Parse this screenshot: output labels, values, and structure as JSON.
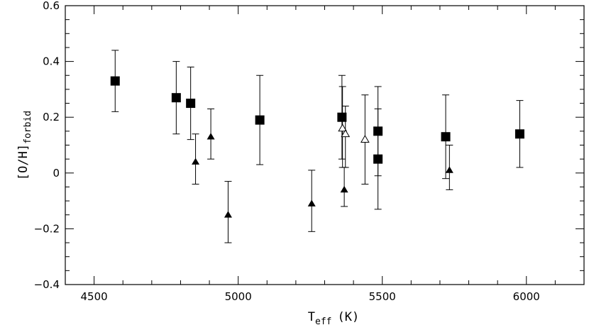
{
  "chart_data": {
    "type": "scatter",
    "xlabel_main": "T",
    "xlabel_sub": "eff",
    "xlabel_unit": "(K)",
    "ylabel_main": "[O/H]",
    "ylabel_sub": "forbid",
    "xlim": [
      4400,
      6200
    ],
    "ylim": [
      -0.4,
      0.6
    ],
    "xticks": [
      {
        "value": 4500,
        "label": "4500"
      },
      {
        "value": 5000,
        "label": "5000"
      },
      {
        "value": 5500,
        "label": "5500"
      },
      {
        "value": 6000,
        "label": "6000"
      }
    ],
    "yticks": [
      {
        "value": -0.4,
        "label": "−0.4"
      },
      {
        "value": -0.2,
        "label": "−0.2"
      },
      {
        "value": 0,
        "label": "0"
      },
      {
        "value": 0.2,
        "label": "0.2"
      },
      {
        "value": 0.4,
        "label": "0.4"
      },
      {
        "value": 0.6,
        "label": "0.6"
      }
    ],
    "x_minor_step": 100,
    "y_minor_step": 0.05,
    "grid": false,
    "series": [
      {
        "marker": "filled-square",
        "points": [
          {
            "x": 4573,
            "y": 0.33,
            "lo": 0.22,
            "hi": 0.44
          },
          {
            "x": 4785,
            "y": 0.27,
            "lo": 0.14,
            "hi": 0.4
          },
          {
            "x": 4835,
            "y": 0.25,
            "lo": 0.12,
            "hi": 0.38
          },
          {
            "x": 5075,
            "y": 0.19,
            "lo": 0.03,
            "hi": 0.35
          },
          {
            "x": 5360,
            "y": 0.2,
            "lo": 0.05,
            "hi": 0.35
          },
          {
            "x": 5485,
            "y": 0.15,
            "lo": -0.01,
            "hi": 0.31
          },
          {
            "x": 5485,
            "y": 0.05,
            "lo": -0.13,
            "hi": 0.23
          },
          {
            "x": 5720,
            "y": 0.13,
            "lo": -0.02,
            "hi": 0.28
          },
          {
            "x": 5977,
            "y": 0.14,
            "lo": 0.02,
            "hi": 0.26
          }
        ]
      },
      {
        "marker": "filled-triangle",
        "points": [
          {
            "x": 4852,
            "y": 0.04,
            "lo": -0.04,
            "hi": 0.14
          },
          {
            "x": 4905,
            "y": 0.13,
            "lo": 0.05,
            "hi": 0.23
          },
          {
            "x": 4965,
            "y": -0.15,
            "lo": -0.25,
            "hi": -0.03
          },
          {
            "x": 5255,
            "y": -0.11,
            "lo": -0.21,
            "hi": 0.01
          },
          {
            "x": 5368,
            "y": -0.06,
            "lo": -0.12,
            "hi": 0.02
          },
          {
            "x": 5733,
            "y": 0.01,
            "lo": -0.06,
            "hi": 0.1
          }
        ]
      },
      {
        "marker": "open-triangle",
        "points": [
          {
            "x": 5362,
            "y": 0.16,
            "lo": 0.02,
            "hi": 0.31
          },
          {
            "x": 5372,
            "y": 0.14,
            "lo": 0.02,
            "hi": 0.24
          },
          {
            "x": 5440,
            "y": 0.12,
            "lo": -0.04,
            "hi": 0.28
          }
        ]
      }
    ]
  }
}
